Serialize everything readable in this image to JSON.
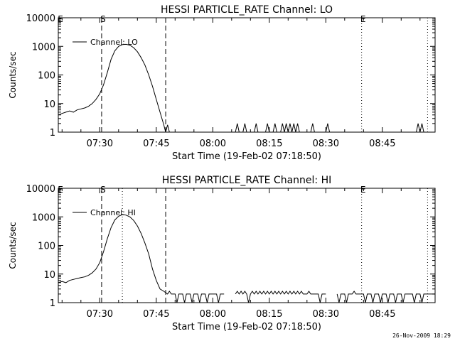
{
  "footer": {
    "timestamp": "26-Nov-2009 18:29"
  },
  "chart_data": [
    {
      "type": "line",
      "title": "HESSI PARTICLE_RATE Channel: LO",
      "xlabel": "Start Time (19-Feb-02 07:18:50)",
      "ylabel": "Counts/sec",
      "xscale": "time",
      "yscale": "log",
      "xlim": [
        "07:19:00",
        "08:59:00"
      ],
      "ylim": [
        1,
        10000
      ],
      "xticks": [
        "07:30",
        "07:45",
        "08:00",
        "08:15",
        "08:30",
        "08:45"
      ],
      "yticks": [
        "1",
        "10",
        "100",
        "1000",
        "10000"
      ],
      "grid": false,
      "legend": {
        "location": "top-left",
        "entries": [
          "Channel: LO"
        ]
      },
      "markers": [
        {
          "label": "S",
          "time": "07:30:30",
          "style": "dashed"
        },
        {
          "label": "",
          "time": "07:47:30",
          "style": "dashed"
        },
        {
          "label": "E",
          "time": "08:39:30",
          "style": "dotted"
        },
        {
          "label": "",
          "time": "08:57:00",
          "style": "dotted"
        }
      ],
      "series": [
        {
          "name": "Channel: LO",
          "points": [
            [
              "07:19:00",
              4
            ],
            [
              "07:20:00",
              4.5
            ],
            [
              "07:21:00",
              5
            ],
            [
              "07:22:00",
              5.5
            ],
            [
              "07:23:00",
              5
            ],
            [
              "07:24:00",
              6
            ],
            [
              "07:25:00",
              6.5
            ],
            [
              "07:26:00",
              7
            ],
            [
              "07:27:00",
              8
            ],
            [
              "07:28:00",
              10
            ],
            [
              "07:29:00",
              14
            ],
            [
              "07:30:00",
              22
            ],
            [
              "07:31:00",
              45
            ],
            [
              "07:32:00",
              120
            ],
            [
              "07:33:00",
              350
            ],
            [
              "07:34:00",
              700
            ],
            [
              "07:35:00",
              1000
            ],
            [
              "07:36:00",
              1150
            ],
            [
              "07:37:00",
              1180
            ],
            [
              "07:38:00",
              1100
            ],
            [
              "07:39:00",
              900
            ],
            [
              "07:40:00",
              650
            ],
            [
              "07:41:00",
              400
            ],
            [
              "07:42:00",
              220
            ],
            [
              "07:43:00",
              100
            ],
            [
              "07:44:00",
              40
            ],
            [
              "07:45:00",
              14
            ],
            [
              "07:46:00",
              5
            ],
            [
              "07:47:00",
              1.8
            ],
            [
              "07:47:30",
              1
            ],
            [
              "07:48:00",
              1.8
            ],
            [
              "07:48:30",
              1
            ],
            [
              "08:06:00",
              1
            ],
            [
              "08:06:30",
              2
            ],
            [
              "08:07:00",
              1
            ],
            [
              "08:08:00",
              1
            ],
            [
              "08:08:30",
              2
            ],
            [
              "08:09:00",
              1
            ],
            [
              "08:11:00",
              1
            ],
            [
              "08:11:30",
              2
            ],
            [
              "08:12:00",
              1
            ],
            [
              "08:14:00",
              1
            ],
            [
              "08:14:30",
              2
            ],
            [
              "08:15:00",
              1
            ],
            [
              "08:16:00",
              1
            ],
            [
              "08:16:30",
              2
            ],
            [
              "08:17:00",
              1
            ],
            [
              "08:18:00",
              1
            ],
            [
              "08:18:30",
              2
            ],
            [
              "08:19:00",
              1
            ],
            [
              "08:19:30",
              2
            ],
            [
              "08:20:00",
              1
            ],
            [
              "08:20:30",
              2
            ],
            [
              "08:21:00",
              1
            ],
            [
              "08:21:30",
              2
            ],
            [
              "08:22:00",
              1
            ],
            [
              "08:22:30",
              2
            ],
            [
              "08:23:00",
              1
            ],
            [
              "08:26:00",
              1
            ],
            [
              "08:26:30",
              2
            ],
            [
              "08:27:00",
              1
            ],
            [
              "08:30:00",
              1
            ],
            [
              "08:30:30",
              2
            ],
            [
              "08:31:00",
              1
            ],
            [
              "08:54:00",
              1
            ],
            [
              "08:54:30",
              2
            ],
            [
              "08:55:00",
              1
            ],
            [
              "08:55:30",
              2
            ],
            [
              "08:56:00",
              1
            ]
          ]
        }
      ]
    },
    {
      "type": "line",
      "title": "HESSI PARTICLE_RATE Channel: HI",
      "xlabel": "Start Time (19-Feb-02 07:18:50)",
      "ylabel": "Counts/sec",
      "xscale": "time",
      "yscale": "log",
      "xlim": [
        "07:19:00",
        "08:59:00"
      ],
      "ylim": [
        1,
        10000
      ],
      "xticks": [
        "07:30",
        "07:45",
        "08:00",
        "08:15",
        "08:30",
        "08:45"
      ],
      "yticks": [
        "1",
        "10",
        "100",
        "1000",
        "10000"
      ],
      "grid": false,
      "legend": {
        "location": "top-left",
        "entries": [
          "Channel: HI"
        ]
      },
      "markers": [
        {
          "label": "S",
          "time": "07:30:30",
          "style": "dashed"
        },
        {
          "label": "",
          "time": "07:36:00",
          "style": "dotted"
        },
        {
          "label": "",
          "time": "07:47:30",
          "style": "dashed"
        },
        {
          "label": "E",
          "time": "08:39:30",
          "style": "dotted"
        },
        {
          "label": "",
          "time": "08:57:00",
          "style": "dotted"
        }
      ],
      "series": [
        {
          "name": "Channel: HI",
          "points": [
            [
              "07:19:00",
              5
            ],
            [
              "07:20:00",
              5.5
            ],
            [
              "07:21:00",
              5
            ],
            [
              "07:22:00",
              6
            ],
            [
              "07:23:00",
              6.5
            ],
            [
              "07:24:00",
              7
            ],
            [
              "07:25:00",
              7.5
            ],
            [
              "07:26:00",
              8
            ],
            [
              "07:27:00",
              9
            ],
            [
              "07:28:00",
              11
            ],
            [
              "07:29:00",
              15
            ],
            [
              "07:30:00",
              25
            ],
            [
              "07:31:00",
              60
            ],
            [
              "07:32:00",
              170
            ],
            [
              "07:33:00",
              420
            ],
            [
              "07:34:00",
              780
            ],
            [
              "07:35:00",
              1050
            ],
            [
              "07:36:00",
              1200
            ],
            [
              "07:37:00",
              1150
            ],
            [
              "07:38:00",
              1000
            ],
            [
              "07:39:00",
              750
            ],
            [
              "07:40:00",
              480
            ],
            [
              "07:41:00",
              260
            ],
            [
              "07:42:00",
              120
            ],
            [
              "07:43:00",
              50
            ],
            [
              "07:44:00",
              15
            ],
            [
              "07:45:00",
              6
            ],
            [
              "07:46:00",
              3
            ],
            [
              "07:47:00",
              2.5
            ],
            [
              "07:48:00",
              2
            ],
            [
              "07:48:30",
              2.5
            ],
            [
              "07:49:00",
              2
            ],
            [
              "07:50:00",
              2
            ],
            [
              "07:50:30",
              1
            ],
            [
              "07:51:00",
              2
            ],
            [
              "07:52:00",
              2
            ],
            [
              "07:52:30",
              1
            ],
            [
              "07:53:00",
              2
            ],
            [
              "07:54:00",
              2
            ],
            [
              "07:54:30",
              1
            ],
            [
              "07:55:00",
              2
            ],
            [
              "07:56:00",
              2
            ],
            [
              "07:56:30",
              1
            ],
            [
              "07:57:00",
              2
            ],
            [
              "07:58:00",
              2
            ],
            [
              "07:58:30",
              1
            ],
            [
              "07:59:00",
              2
            ],
            [
              "08:01:00",
              2
            ],
            [
              "08:01:30",
              1
            ],
            [
              "08:02:00",
              2
            ],
            [
              "08:03:00",
              2
            ],
            [
              "08:06:00",
              2
            ],
            [
              "08:06:30",
              2.5
            ],
            [
              "08:07:00",
              2
            ],
            [
              "08:07:30",
              2.5
            ],
            [
              "08:08:00",
              2
            ],
            [
              "08:08:30",
              2.5
            ],
            [
              "08:09:00",
              2
            ],
            [
              "08:09:30",
              1
            ],
            [
              "08:10:00",
              2
            ],
            [
              "08:10:30",
              2.5
            ],
            [
              "08:11:00",
              2
            ],
            [
              "08:11:30",
              2.5
            ],
            [
              "08:12:00",
              2
            ],
            [
              "08:12:30",
              2.5
            ],
            [
              "08:13:00",
              2
            ],
            [
              "08:13:30",
              2.5
            ],
            [
              "08:14:00",
              2
            ],
            [
              "08:14:30",
              2.5
            ],
            [
              "08:15:00",
              2
            ],
            [
              "08:15:30",
              2.5
            ],
            [
              "08:16:00",
              2
            ],
            [
              "08:16:30",
              2.5
            ],
            [
              "08:17:00",
              2
            ],
            [
              "08:17:30",
              2.5
            ],
            [
              "08:18:00",
              2
            ],
            [
              "08:18:30",
              2.5
            ],
            [
              "08:19:00",
              2
            ],
            [
              "08:19:30",
              2.5
            ],
            [
              "08:20:00",
              2
            ],
            [
              "08:20:30",
              2.5
            ],
            [
              "08:21:00",
              2
            ],
            [
              "08:21:30",
              2.5
            ],
            [
              "08:22:00",
              2
            ],
            [
              "08:22:30",
              2.5
            ],
            [
              "08:23:00",
              2
            ],
            [
              "08:23:30",
              2.5
            ],
            [
              "08:24:00",
              2
            ],
            [
              "08:25:00",
              2
            ],
            [
              "08:25:30",
              2.5
            ],
            [
              "08:26:00",
              2
            ],
            [
              "08:27:00",
              2
            ],
            [
              "08:28:00",
              2
            ],
            [
              "08:28:30",
              1
            ],
            [
              "08:29:00",
              2
            ],
            [
              "08:30:00",
              2
            ],
            [
              "08:33:00",
              2
            ],
            [
              "08:33:30",
              1
            ],
            [
              "08:34:00",
              2
            ],
            [
              "08:35:00",
              2
            ],
            [
              "08:35:30",
              1
            ],
            [
              "08:36:00",
              2
            ],
            [
              "08:37:00",
              2
            ],
            [
              "08:37:30",
              2.5
            ],
            [
              "08:38:00",
              2
            ],
            [
              "08:39:00",
              2
            ],
            [
              "08:40:00",
              2
            ],
            [
              "08:40:30",
              1
            ],
            [
              "08:41:00",
              2
            ],
            [
              "08:42:00",
              2
            ],
            [
              "08:42:30",
              1
            ],
            [
              "08:43:00",
              2
            ],
            [
              "08:44:00",
              2
            ],
            [
              "08:44:30",
              1
            ],
            [
              "08:45:00",
              2
            ],
            [
              "08:46:00",
              2
            ],
            [
              "08:46:30",
              1
            ],
            [
              "08:47:00",
              2
            ],
            [
              "08:48:00",
              2
            ],
            [
              "08:48:30",
              1
            ],
            [
              "08:49:00",
              2
            ],
            [
              "08:50:00",
              2
            ],
            [
              "08:50:30",
              1
            ],
            [
              "08:51:00",
              2
            ],
            [
              "08:52:00",
              2
            ],
            [
              "08:53:00",
              2
            ],
            [
              "08:53:30",
              1
            ],
            [
              "08:54:00",
              2
            ],
            [
              "08:55:00",
              2
            ],
            [
              "08:55:30",
              1
            ],
            [
              "08:56:00",
              2
            ],
            [
              "08:57:00",
              2
            ],
            [
              "08:58:00",
              2
            ],
            [
              "08:59:00",
              2
            ]
          ]
        }
      ]
    }
  ]
}
